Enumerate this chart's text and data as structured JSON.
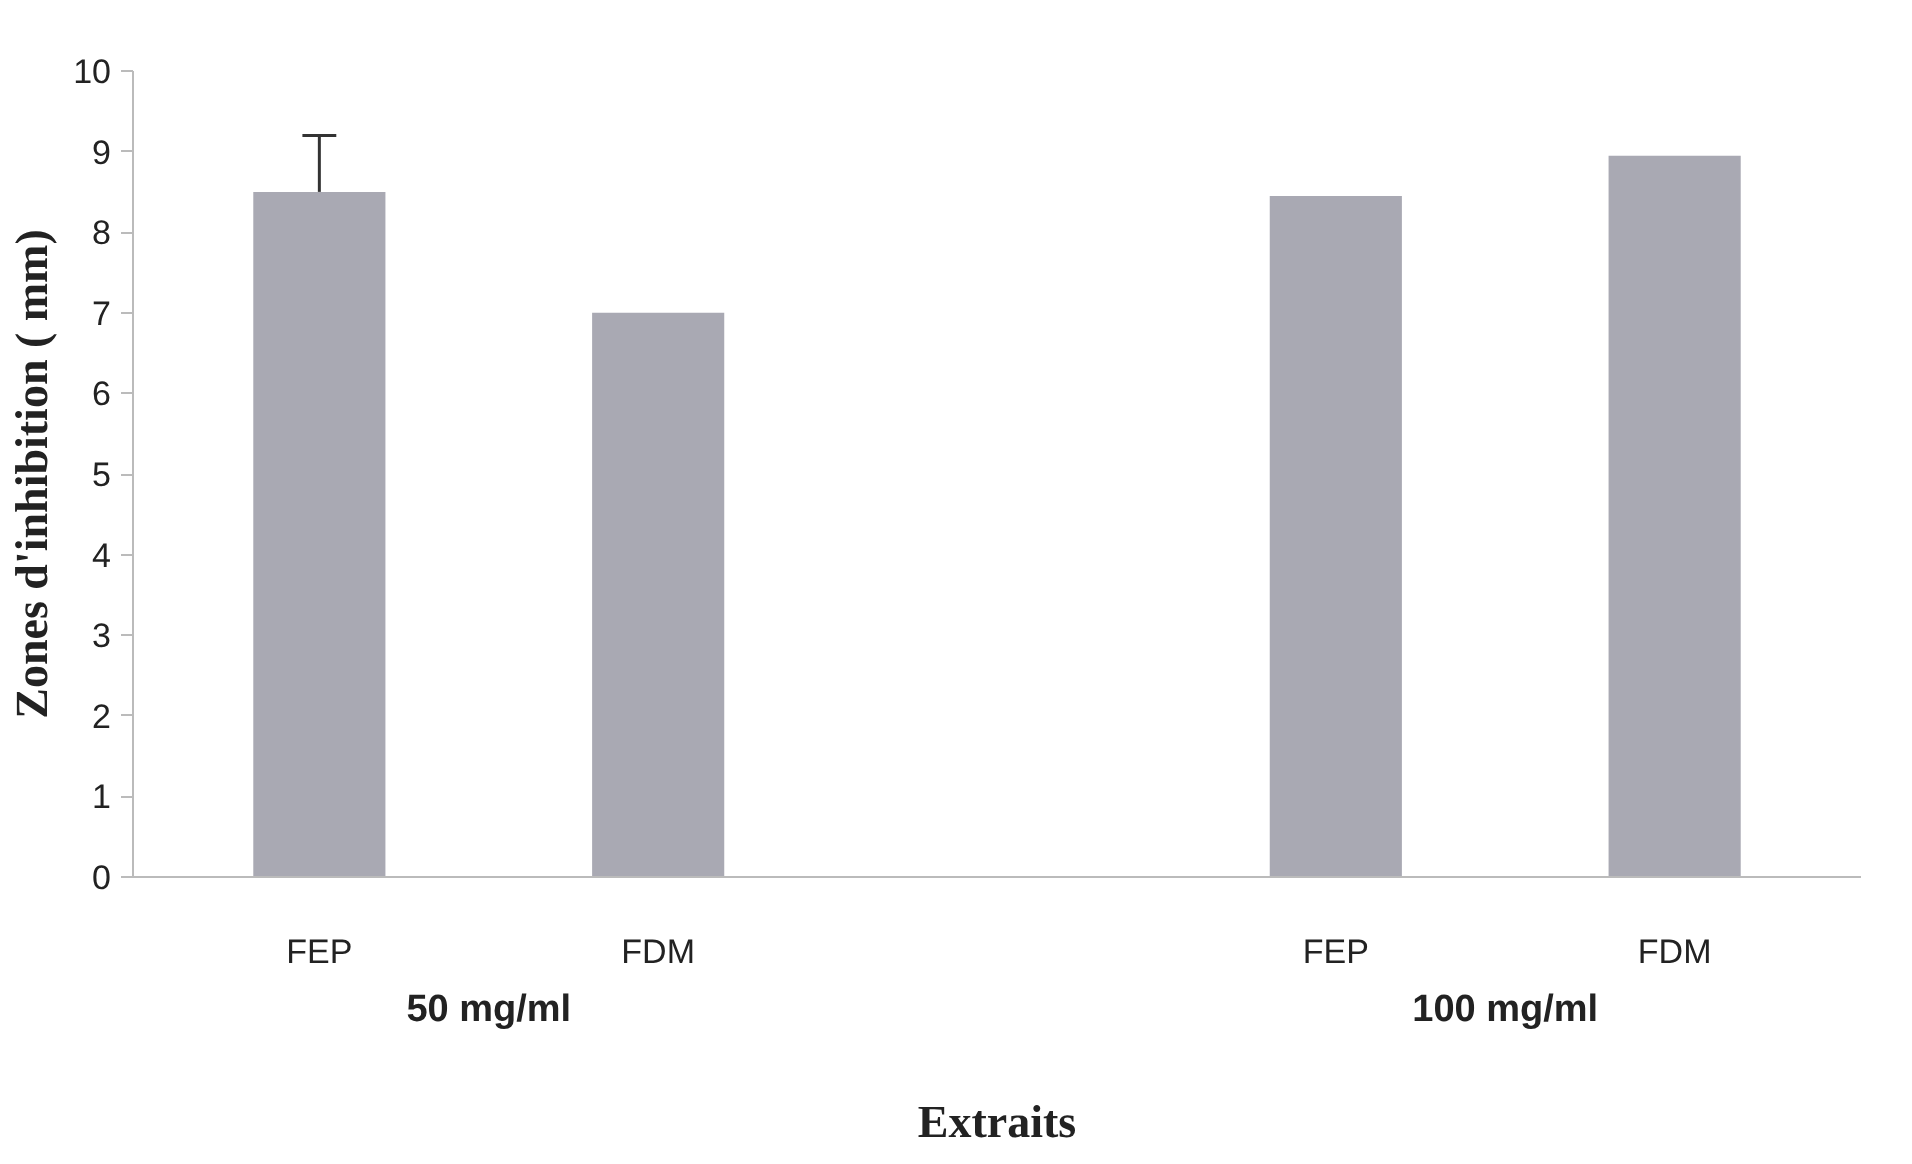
{
  "chart_data": {
    "type": "bar",
    "xlabel": "Extraits",
    "ylabel": "Zones d'inhibition ( mm)",
    "categories": [
      "FEP",
      "FDM",
      null,
      "FEP",
      "FDM"
    ],
    "values": [
      8.5,
      7.0,
      null,
      8.45,
      8.95
    ],
    "errors": [
      [
        8.5,
        9.2
      ],
      null,
      null,
      null,
      null
    ],
    "color": "#a9a9b3",
    "ylim": [
      0,
      10
    ],
    "yticks": [
      0,
      1,
      2,
      3,
      4,
      5,
      6,
      7,
      8,
      9,
      10
    ],
    "grid": false,
    "annotations": [
      "50 mg/ml",
      "100 mg/ml"
    ]
  }
}
